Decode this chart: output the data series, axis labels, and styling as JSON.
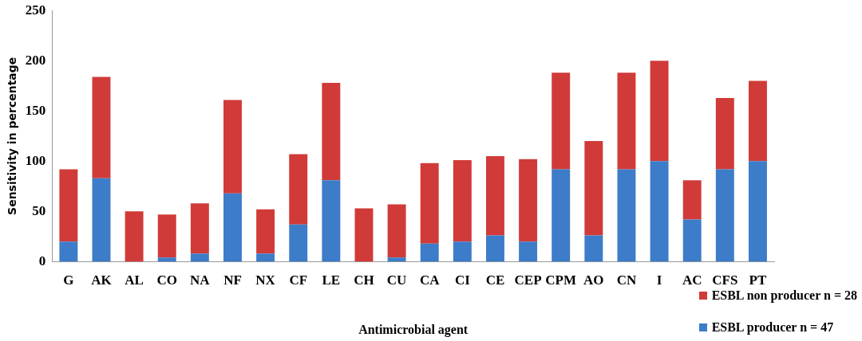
{
  "chart_data": {
    "type": "bar",
    "stacked": true,
    "xlabel": "Antimicrobial agent",
    "ylabel": "Sensitivity in percentage",
    "categories": [
      "G",
      "AK",
      "AL",
      "CO",
      "NA",
      "NF",
      "NX",
      "CF",
      "LE",
      "CH",
      "CU",
      "CA",
      "CI",
      "CE",
      "CEP",
      "CPM",
      "AO",
      "CN",
      "I",
      "AC",
      "CFS",
      "PT"
    ],
    "series": [
      {
        "name": "ESBL producer n = 47",
        "color": "#3d7cc9",
        "values": [
          20,
          83,
          0,
          4,
          8,
          68,
          8,
          37,
          81,
          0,
          4,
          18,
          20,
          26,
          20,
          92,
          26,
          92,
          100,
          42,
          92,
          100
        ]
      },
      {
        "name": "ESBL non producer n = 28",
        "color": "#d03b39",
        "values": [
          72,
          101,
          50,
          43,
          50,
          93,
          44,
          70,
          97,
          53,
          53,
          80,
          81,
          79,
          82,
          96,
          94,
          96,
          100,
          39,
          71,
          80
        ]
      }
    ],
    "ylim": [
      0,
      250
    ],
    "yticks": [
      0,
      50,
      100,
      150,
      200,
      250
    ],
    "grid": false,
    "legend": "bottom right"
  }
}
